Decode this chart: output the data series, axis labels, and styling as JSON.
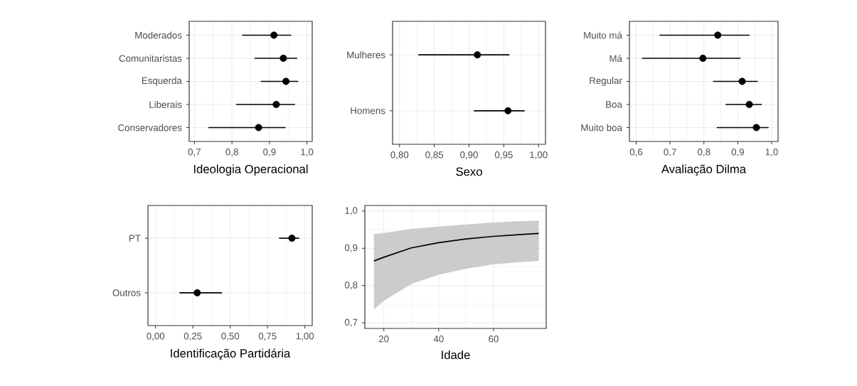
{
  "chart_data": [
    {
      "type": "scatter",
      "orientation": "horizontal",
      "xlabel": "Ideologia Operacional",
      "categories": [
        "Moderados",
        "Comunitaristas",
        "Esquerda",
        "Liberais",
        "Conservadores"
      ],
      "values": [
        0.912,
        0.937,
        0.944,
        0.918,
        0.871
      ],
      "errors": [
        [
          0.827,
          0.958
        ],
        [
          0.86,
          0.974
        ],
        [
          0.877,
          0.977
        ],
        [
          0.811,
          0.968
        ],
        [
          0.737,
          0.943
        ]
      ],
      "color": "#000000",
      "grid": true,
      "xlim": [
        0.686,
        1.014
      ],
      "xticks": [
        {
          "value": 0.7,
          "label": "0,7"
        },
        {
          "value": 0.8,
          "label": "0,8"
        },
        {
          "value": 0.9,
          "label": "0,9"
        },
        {
          "value": 1.0,
          "label": "1,0"
        }
      ]
    },
    {
      "type": "scatter",
      "orientation": "horizontal",
      "xlabel": "Sexo",
      "categories": [
        "Mulheres",
        "Homens"
      ],
      "values": [
        0.912,
        0.956
      ],
      "errors": [
        [
          0.827,
          0.958
        ],
        [
          0.907,
          0.98
        ]
      ],
      "color": "#000000",
      "grid": true,
      "xlim": [
        0.79,
        1.01
      ],
      "xticks": [
        {
          "value": 0.8,
          "label": "0,80"
        },
        {
          "value": 0.85,
          "label": "0,85"
        },
        {
          "value": 0.9,
          "label": "0,90"
        },
        {
          "value": 0.95,
          "label": "0,95"
        },
        {
          "value": 1.0,
          "label": "1,00"
        }
      ]
    },
    {
      "type": "scatter",
      "orientation": "horizontal",
      "xlabel": "Avaliação Dilma",
      "categories": [
        "Muito má",
        "Má",
        "Regular",
        "Boa",
        "Muito boa"
      ],
      "values": [
        0.841,
        0.797,
        0.913,
        0.934,
        0.955
      ],
      "errors": [
        [
          0.669,
          0.935
        ],
        [
          0.617,
          0.908
        ],
        [
          0.827,
          0.959
        ],
        [
          0.864,
          0.971
        ],
        [
          0.838,
          0.991
        ]
      ],
      "color": "#000000",
      "grid": true,
      "xlim": [
        0.58,
        1.019
      ],
      "xticks": [
        {
          "value": 0.6,
          "label": "0,6"
        },
        {
          "value": 0.7,
          "label": "0,7"
        },
        {
          "value": 0.8,
          "label": "0,8"
        },
        {
          "value": 0.9,
          "label": "0,9"
        },
        {
          "value": 1.0,
          "label": "1,0"
        }
      ]
    },
    {
      "type": "scatter",
      "orientation": "horizontal",
      "xlabel": "Identificação Partidária",
      "categories": [
        "PT",
        "Outros"
      ],
      "values": [
        0.913,
        0.279
      ],
      "errors": [
        [
          0.827,
          0.962
        ],
        [
          0.16,
          0.444
        ]
      ],
      "color": "#000000",
      "grid": true,
      "xlim": [
        -0.051,
        1.049
      ],
      "xticks": [
        {
          "value": 0.0,
          "label": "0,00"
        },
        {
          "value": 0.25,
          "label": "0,25"
        },
        {
          "value": 0.5,
          "label": "0,50"
        },
        {
          "value": 0.75,
          "label": "0,75"
        },
        {
          "value": 1.0,
          "label": "1,00"
        }
      ]
    },
    {
      "type": "line",
      "xlabel": "Idade",
      "x": [
        16.4,
        20,
        30,
        40,
        50,
        60,
        70,
        76.5
      ],
      "series": [
        {
          "color": "#000000",
          "values": [
            0.866,
            0.876,
            0.901,
            0.915,
            0.925,
            0.932,
            0.937,
            0.94
          ],
          "lower": [
            0.736,
            0.759,
            0.804,
            0.829,
            0.845,
            0.857,
            0.863,
            0.866
          ],
          "upper": [
            0.938,
            0.941,
            0.952,
            0.958,
            0.964,
            0.969,
            0.973,
            0.974
          ]
        }
      ],
      "grid": true,
      "xlim": [
        13.1,
        79.2
      ],
      "ylim": [
        0.685,
        1.015
      ],
      "xticks": [
        20,
        40,
        60
      ],
      "yticks": [
        {
          "value": 0.7,
          "label": "0,7"
        },
        {
          "value": 0.8,
          "label": "0,8"
        },
        {
          "value": 0.9,
          "label": "0,9"
        },
        {
          "value": 1.0,
          "label": "1,0"
        }
      ]
    }
  ]
}
